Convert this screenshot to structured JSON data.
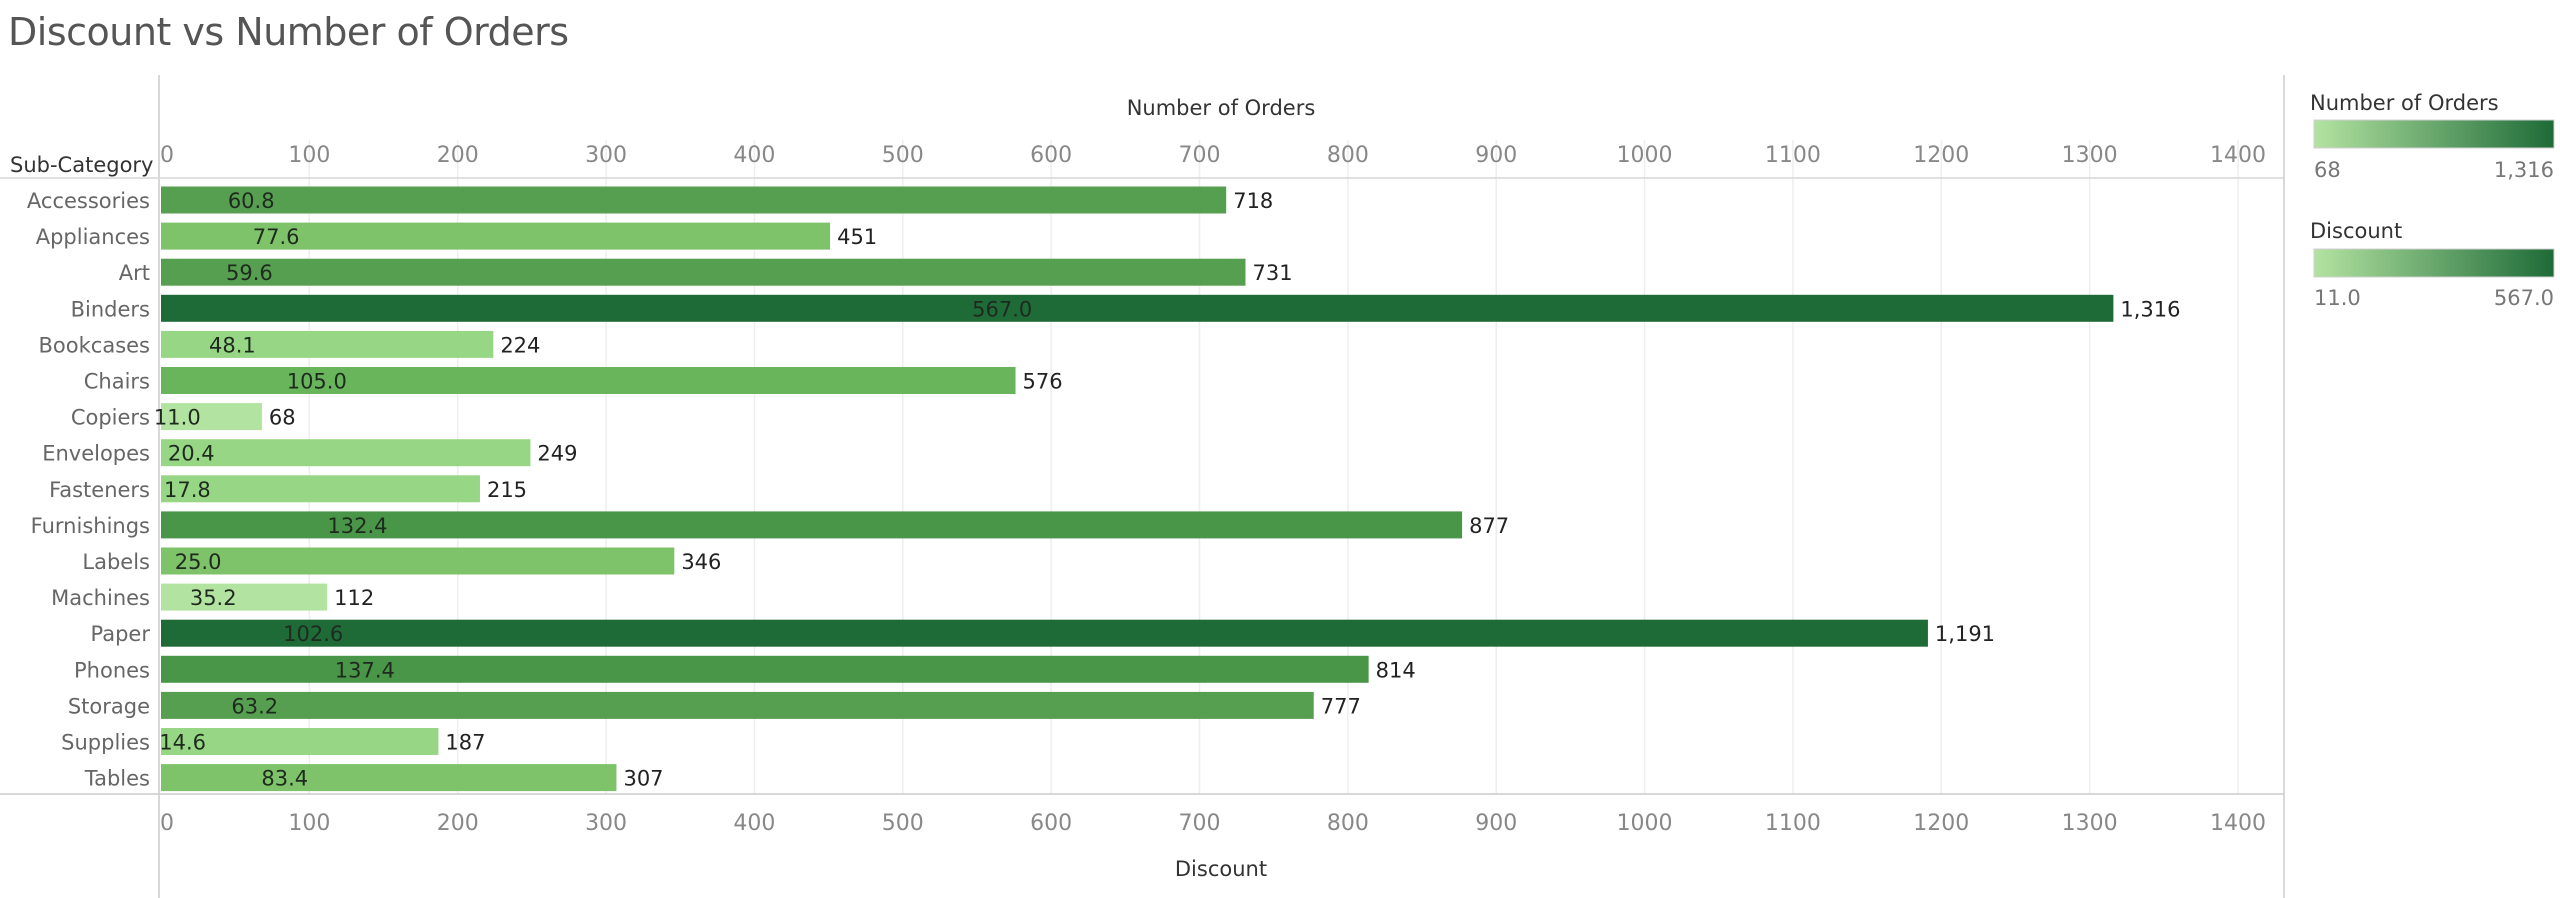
{
  "title": "Discount vs Number of Orders",
  "row_header": "Sub-Category",
  "legends": [
    {
      "title": "Number of Orders",
      "min_label": "68",
      "max_label": "1,316",
      "color_low": "#b3e3a1",
      "color_high": "#1e6b38"
    },
    {
      "title": "Discount",
      "min_label": "11.0",
      "max_label": "567.0",
      "color_low": "#b3e3a1",
      "color_high": "#1e6b38"
    }
  ],
  "chart_data": {
    "type": "bar",
    "orientation": "horizontal",
    "categories": [
      "Accessories",
      "Appliances",
      "Art",
      "Binders",
      "Bookcases",
      "Chairs",
      "Copiers",
      "Envelopes",
      "Fasteners",
      "Furnishings",
      "Labels",
      "Machines",
      "Paper",
      "Phones",
      "Storage",
      "Supplies",
      "Tables"
    ],
    "series": [
      {
        "name": "Number of Orders",
        "values": [
          718,
          451,
          731,
          1316,
          224,
          576,
          68,
          249,
          215,
          877,
          346,
          112,
          1191,
          814,
          777,
          187,
          307
        ],
        "labels": [
          "718",
          "451",
          "731",
          "1,316",
          "224",
          "576",
          "68",
          "249",
          "215",
          "877",
          "346",
          "112",
          "1,191",
          "814",
          "777",
          "187",
          "307"
        ]
      },
      {
        "name": "Discount",
        "values": [
          60.8,
          77.6,
          59.6,
          567.0,
          48.1,
          105.0,
          11.0,
          20.4,
          17.8,
          132.4,
          25.0,
          35.2,
          102.6,
          137.4,
          63.2,
          14.6,
          83.4
        ],
        "labels": [
          "60.8",
          "77.6",
          "59.6",
          "567.0",
          "48.1",
          "105.0",
          "11.0",
          "20.4",
          "17.8",
          "132.4",
          "25.0",
          "35.2",
          "102.6",
          "137.4",
          "63.2",
          "14.6",
          "83.4"
        ]
      }
    ],
    "top_axis": {
      "title": "Number of Orders",
      "ticks": [
        "0",
        "100",
        "200",
        "300",
        "400",
        "500",
        "600",
        "700",
        "800",
        "900",
        "1000",
        "1100",
        "1200",
        "1300",
        "1400"
      ]
    },
    "bottom_axis": {
      "title": "Discount",
      "ticks": [
        "0",
        "100",
        "200",
        "300",
        "400",
        "500",
        "600",
        "700",
        "800",
        "900",
        "1000",
        "1100",
        "1200",
        "1300",
        "1400"
      ]
    },
    "xlim": [
      0,
      1400
    ],
    "grid": true,
    "legend_position": "right",
    "bar_colors": [
      "#579f50",
      "#7ec26a",
      "#579f50",
      "#1e6b38",
      "#97d685",
      "#69b55b",
      "#b3e3a1",
      "#97d685",
      "#97d685",
      "#499648",
      "#7ec26a",
      "#b3e3a1",
      "#1e6b38",
      "#499648",
      "#579f50",
      "#97d685",
      "#7ec26a"
    ]
  }
}
